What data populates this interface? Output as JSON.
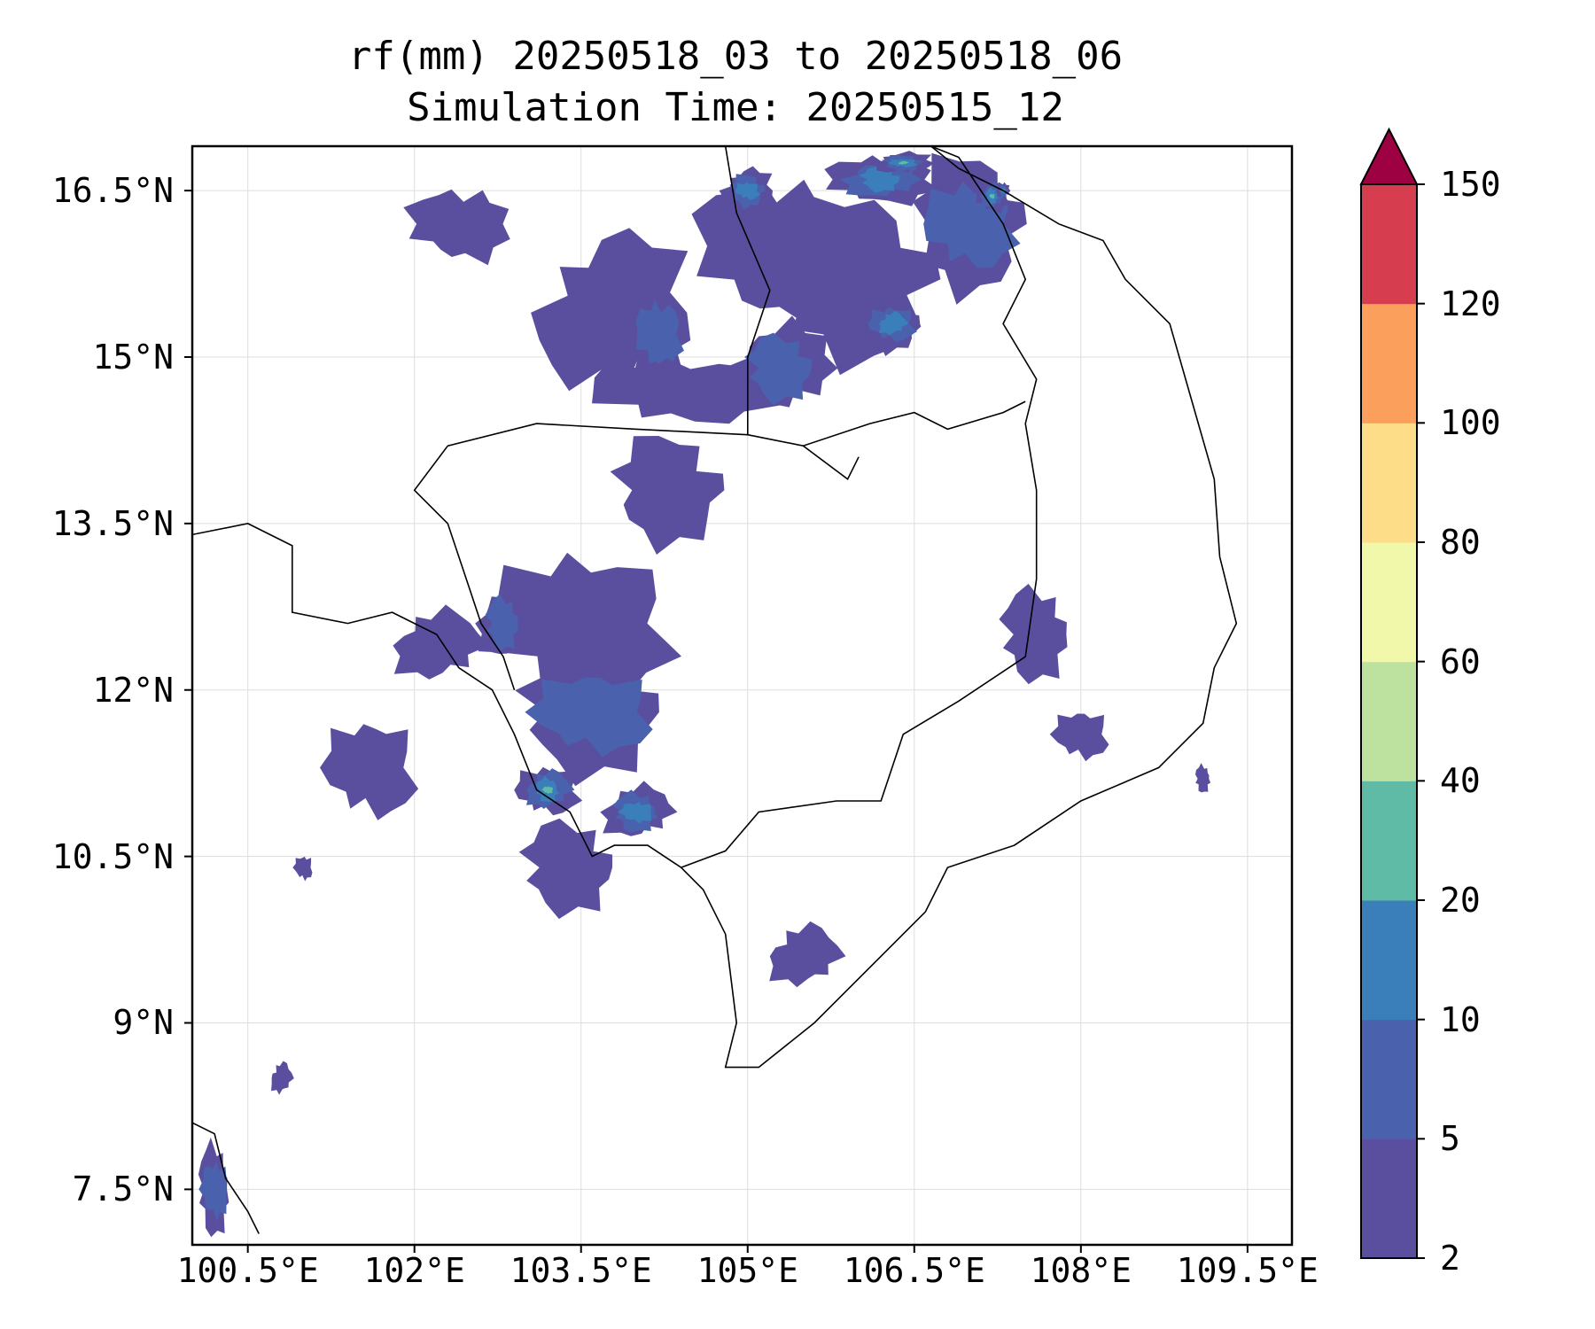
{
  "title": {
    "line1": "rf(mm) 20250518_03 to 20250518_06",
    "line2": "Simulation Time: 20250515_12"
  },
  "map": {
    "lon_range": [
      100.0,
      109.9
    ],
    "lat_range": [
      7.0,
      16.9
    ],
    "x_ticks": [
      {
        "value": 100.5,
        "label": "100.5°E"
      },
      {
        "value": 102.0,
        "label": "102°E"
      },
      {
        "value": 103.5,
        "label": "103.5°E"
      },
      {
        "value": 105.0,
        "label": "105°E"
      },
      {
        "value": 106.5,
        "label": "106.5°E"
      },
      {
        "value": 108.0,
        "label": "108°E"
      },
      {
        "value": 109.5,
        "label": "109.5°E"
      }
    ],
    "y_ticks": [
      {
        "value": 16.5,
        "label": "16.5°N"
      },
      {
        "value": 15.0,
        "label": "15°N"
      },
      {
        "value": 13.5,
        "label": "13.5°N"
      },
      {
        "value": 12.0,
        "label": "12°N"
      },
      {
        "value": 10.5,
        "label": "10.5°N"
      },
      {
        "value": 9.0,
        "label": "9°N"
      },
      {
        "value": 7.5,
        "label": "7.5°N"
      }
    ],
    "grid": true
  },
  "colorbar": {
    "levels": [
      {
        "value": 2,
        "label": "2"
      },
      {
        "value": 5,
        "label": "5"
      },
      {
        "value": 10,
        "label": "10"
      },
      {
        "value": 20,
        "label": "20"
      },
      {
        "value": 40,
        "label": "40"
      },
      {
        "value": 60,
        "label": "60"
      },
      {
        "value": 80,
        "label": "80"
      },
      {
        "value": 100,
        "label": "100"
      },
      {
        "value": 120,
        "label": "120"
      },
      {
        "value": 150,
        "label": "150"
      }
    ],
    "colors": [
      "#5a4f9f",
      "#4a62ad",
      "#3a7fba",
      "#5fbaa6",
      "#bde2a0",
      "#f2f8aa",
      "#fddd88",
      "#fba05c",
      "#d63e50"
    ],
    "extend_color": "#9e0142"
  },
  "rain_areas": [
    {
      "lon": 102.4,
      "lat": 16.2,
      "rx": 0.55,
      "ry": 0.45,
      "level": 0
    },
    {
      "lon": 103.8,
      "lat": 15.4,
      "rx": 0.9,
      "ry": 0.9,
      "level": 0
    },
    {
      "lon": 104.2,
      "lat": 15.2,
      "rx": 0.35,
      "ry": 0.6,
      "level": 1
    },
    {
      "lon": 105.2,
      "lat": 16.0,
      "rx": 0.8,
      "ry": 0.9,
      "level": 0
    },
    {
      "lon": 105.0,
      "lat": 16.5,
      "rx": 0.3,
      "ry": 0.25,
      "level": 2
    },
    {
      "lon": 106.0,
      "lat": 15.7,
      "rx": 1.0,
      "ry": 0.9,
      "level": 0
    },
    {
      "lon": 106.2,
      "lat": 16.6,
      "rx": 0.6,
      "ry": 0.3,
      "level": 2
    },
    {
      "lon": 106.4,
      "lat": 16.75,
      "rx": 0.35,
      "ry": 0.12,
      "level": 3
    },
    {
      "lon": 107.0,
      "lat": 16.2,
      "rx": 0.7,
      "ry": 0.75,
      "level": 1
    },
    {
      "lon": 107.2,
      "lat": 16.45,
      "rx": 0.18,
      "ry": 0.2,
      "level": 3
    },
    {
      "lon": 107.3,
      "lat": 16.5,
      "rx": 0.08,
      "ry": 0.08,
      "level": 5
    },
    {
      "lon": 106.3,
      "lat": 15.3,
      "rx": 0.35,
      "ry": 0.3,
      "level": 2
    },
    {
      "lon": 104.4,
      "lat": 14.7,
      "rx": 1.0,
      "ry": 0.4,
      "level": 0
    },
    {
      "lon": 105.3,
      "lat": 14.9,
      "rx": 0.6,
      "ry": 0.5,
      "level": 1
    },
    {
      "lon": 104.3,
      "lat": 13.8,
      "rx": 0.7,
      "ry": 0.6,
      "level": 0
    },
    {
      "lon": 103.5,
      "lat": 12.6,
      "rx": 1.0,
      "ry": 0.9,
      "level": 0
    },
    {
      "lon": 102.8,
      "lat": 12.6,
      "rx": 0.3,
      "ry": 0.4,
      "level": 1
    },
    {
      "lon": 103.6,
      "lat": 11.8,
      "rx": 0.9,
      "ry": 0.7,
      "level": 1
    },
    {
      "lon": 103.2,
      "lat": 11.1,
      "rx": 0.35,
      "ry": 0.3,
      "level": 3
    },
    {
      "lon": 104.0,
      "lat": 10.9,
      "rx": 0.4,
      "ry": 0.3,
      "level": 2
    },
    {
      "lon": 103.4,
      "lat": 10.4,
      "rx": 0.6,
      "ry": 0.5,
      "level": 0
    },
    {
      "lon": 101.6,
      "lat": 11.3,
      "rx": 0.5,
      "ry": 0.6,
      "level": 0
    },
    {
      "lon": 102.2,
      "lat": 12.4,
      "rx": 0.5,
      "ry": 0.4,
      "level": 0
    },
    {
      "lon": 107.6,
      "lat": 12.5,
      "rx": 0.45,
      "ry": 0.5,
      "level": 0
    },
    {
      "lon": 108.0,
      "lat": 11.6,
      "rx": 0.3,
      "ry": 0.3,
      "level": 0
    },
    {
      "lon": 105.5,
      "lat": 9.6,
      "rx": 0.4,
      "ry": 0.35,
      "level": 0
    },
    {
      "lon": 100.2,
      "lat": 7.5,
      "rx": 0.2,
      "ry": 0.5,
      "level": 1
    },
    {
      "lon": 101.0,
      "lat": 10.4,
      "rx": 0.1,
      "ry": 0.15,
      "level": 0
    },
    {
      "lon": 100.8,
      "lat": 8.5,
      "rx": 0.12,
      "ry": 0.18,
      "level": 0
    },
    {
      "lon": 109.1,
      "lat": 11.2,
      "rx": 0.1,
      "ry": 0.15,
      "level": 0
    }
  ]
}
